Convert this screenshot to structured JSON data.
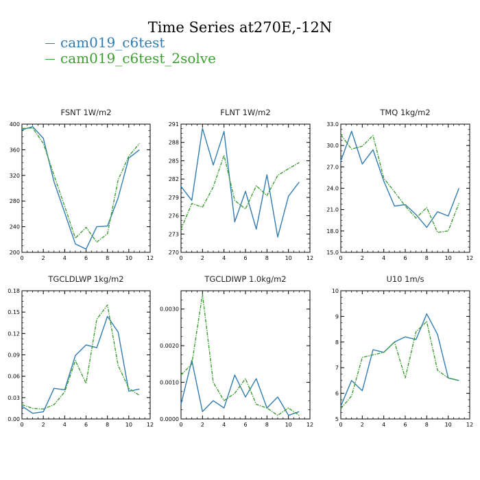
{
  "title": "Time Series at270E,-12N",
  "colors": {
    "series1": "#2f7bb3",
    "series2": "#3a9e2e"
  },
  "legend": [
    {
      "label": "cam019_c6test",
      "color": "#2f7bb3"
    },
    {
      "label": "cam019_c6test_2solve",
      "color": "#3a9e2e"
    }
  ],
  "chart_data": [
    {
      "type": "line",
      "title": "FSNT   1W/m2",
      "xlim": [
        0,
        12
      ],
      "ylim": [
        200,
        400
      ],
      "xticks": [
        "0",
        "2",
        "4",
        "6",
        "8",
        "10",
        "12"
      ],
      "yticks": [
        "200",
        "240",
        "280",
        "320",
        "360",
        "400"
      ],
      "x": [
        0,
        1,
        2,
        3,
        4,
        5,
        6,
        7,
        8,
        9,
        10,
        11
      ],
      "series": [
        {
          "name": "cam019_c6test",
          "values": [
            391,
            396,
            378,
            310,
            262,
            213,
            205,
            240,
            241,
            285,
            347,
            360
          ]
        },
        {
          "name": "cam019_c6test_2solve",
          "values": [
            393,
            394,
            370,
            320,
            272,
            222,
            239,
            216,
            229,
            313,
            350,
            370
          ]
        }
      ]
    },
    {
      "type": "line",
      "title": "FLNT   1W/m2",
      "xlim": [
        0,
        12
      ],
      "ylim": [
        270,
        291
      ],
      "xticks": [
        "0",
        "2",
        "4",
        "6",
        "8",
        "10",
        "12"
      ],
      "yticks": [
        "270",
        "273",
        "276",
        "279",
        "282",
        "285",
        "288",
        "291"
      ],
      "x": [
        0,
        1,
        2,
        3,
        4,
        5,
        6,
        7,
        8,
        9,
        10,
        11
      ],
      "series": [
        {
          "name": "cam019_c6test",
          "values": [
            280.8,
            278.5,
            290.3,
            284.3,
            289.8,
            275.0,
            280.0,
            273.8,
            282.7,
            272.5,
            279.2,
            281.5
          ]
        },
        {
          "name": "cam019_c6test_2solve",
          "values": [
            273.8,
            278.0,
            277.4,
            280.7,
            285.9,
            278.5,
            277.1,
            280.9,
            279.3,
            282.6,
            283.7,
            284.7
          ]
        }
      ]
    },
    {
      "type": "line",
      "title": "TMQ   1kg/m2",
      "xlim": [
        0,
        12
      ],
      "ylim": [
        15,
        33
      ],
      "xticks": [
        "0",
        "2",
        "4",
        "6",
        "8",
        "10",
        "12"
      ],
      "yticks": [
        "15.0",
        "18.0",
        "21.0",
        "24.0",
        "27.0",
        "30.0",
        "33.0"
      ],
      "x": [
        0,
        1,
        2,
        3,
        4,
        5,
        6,
        7,
        8,
        9,
        10,
        11
      ],
      "series": [
        {
          "name": "cam019_c6test",
          "values": [
            27.8,
            32.0,
            27.4,
            29.4,
            25.0,
            21.5,
            21.7,
            20.3,
            18.5,
            20.7,
            20.1,
            24.0
          ]
        },
        {
          "name": "cam019_c6test_2solve",
          "values": [
            31.5,
            29.5,
            29.9,
            31.4,
            25.4,
            23.5,
            21.5,
            19.8,
            21.3,
            17.8,
            18.0,
            21.9
          ]
        }
      ]
    },
    {
      "type": "line",
      "title": "TGCLDLWP   1kg/m2",
      "xlim": [
        0,
        12
      ],
      "ylim": [
        0,
        0.18
      ],
      "xticks": [
        "0",
        "2",
        "4",
        "6",
        "8",
        "10",
        "12"
      ],
      "yticks": [
        "0.00",
        "0.03",
        "0.06",
        "0.09",
        "0.12",
        "0.15",
        "0.18"
      ],
      "x": [
        0,
        1,
        2,
        3,
        4,
        5,
        6,
        7,
        8,
        9,
        10,
        11
      ],
      "series": [
        {
          "name": "cam019_c6test",
          "values": [
            0.018,
            0.008,
            0.01,
            0.043,
            0.041,
            0.089,
            0.104,
            0.1,
            0.144,
            0.122,
            0.039,
            0.042
          ]
        },
        {
          "name": "cam019_c6test_2solve",
          "values": [
            0.02,
            0.015,
            0.014,
            0.02,
            0.038,
            0.082,
            0.05,
            0.14,
            0.16,
            0.075,
            0.043,
            0.033
          ]
        }
      ]
    },
    {
      "type": "line",
      "title": "TGCLDIWP   1.0kg/m2",
      "xlim": [
        0,
        12
      ],
      "ylim": [
        0,
        0.0035
      ],
      "xticks": [
        "0",
        "2",
        "4",
        "6",
        "8",
        "10",
        "12"
      ],
      "yticks": [
        "0.0000",
        "0.0010",
        "0.0020",
        "0.0030"
      ],
      "x": [
        0,
        1,
        2,
        3,
        4,
        5,
        6,
        7,
        8,
        9,
        10,
        11
      ],
      "series": [
        {
          "name": "cam019_c6test",
          "values": [
            0.0004,
            0.0016,
            0.0002,
            0.0005,
            0.0003,
            0.0012,
            0.0006,
            0.0011,
            0.0003,
            0.0006,
            0.0001,
            0.0002
          ]
        },
        {
          "name": "cam019_c6test_2solve",
          "values": [
            0.0012,
            0.0015,
            0.0034,
            0.001,
            0.0005,
            0.0007,
            0.0011,
            0.0004,
            0.0003,
            0.0001,
            0.0003,
            0.0001
          ]
        }
      ]
    },
    {
      "type": "line",
      "title": "U10   1m/s",
      "xlim": [
        0,
        12
      ],
      "ylim": [
        5,
        10
      ],
      "xticks": [
        "0",
        "2",
        "4",
        "6",
        "8",
        "10",
        "12"
      ],
      "yticks": [
        "5",
        "6",
        "7",
        "8",
        "9",
        "10"
      ],
      "x": [
        0,
        1,
        2,
        3,
        4,
        5,
        6,
        7,
        8,
        9,
        10,
        11
      ],
      "series": [
        {
          "name": "cam019_c6test",
          "values": [
            5.5,
            6.5,
            6.1,
            7.7,
            7.6,
            8.0,
            8.2,
            8.1,
            9.1,
            8.3,
            6.6,
            6.5
          ]
        },
        {
          "name": "cam019_c6test_2solve",
          "values": [
            5.4,
            5.9,
            7.4,
            7.5,
            7.6,
            8.0,
            6.6,
            8.4,
            8.8,
            6.9,
            6.6,
            6.5
          ]
        }
      ]
    }
  ]
}
